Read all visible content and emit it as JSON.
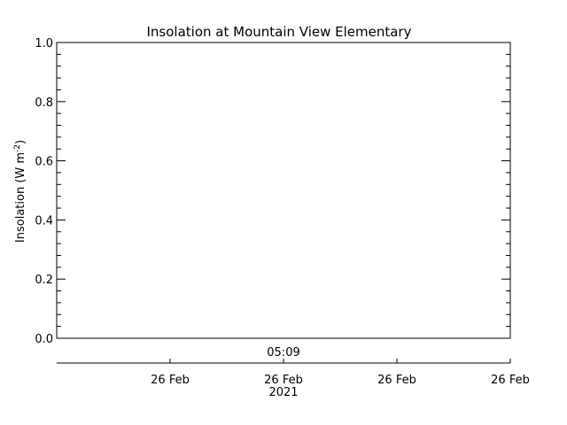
{
  "chart_data": {
    "type": "line",
    "title": "Insolation at Mountain View Elementary",
    "ylabel": "Insolation (W m",
    "ylabel_sup": "-2",
    "ylabel_end": ")",
    "ylim": [
      0.0,
      1.0
    ],
    "yticks": [
      "0.0",
      "0.2",
      "0.4",
      "0.6",
      "0.8",
      "1.0"
    ],
    "x_top_label": "05:09",
    "x_ticks": [
      "26 Feb",
      "26 Feb",
      "26 Feb",
      "26 Feb"
    ],
    "x_year_label": "2021",
    "series": [],
    "grid": false
  }
}
